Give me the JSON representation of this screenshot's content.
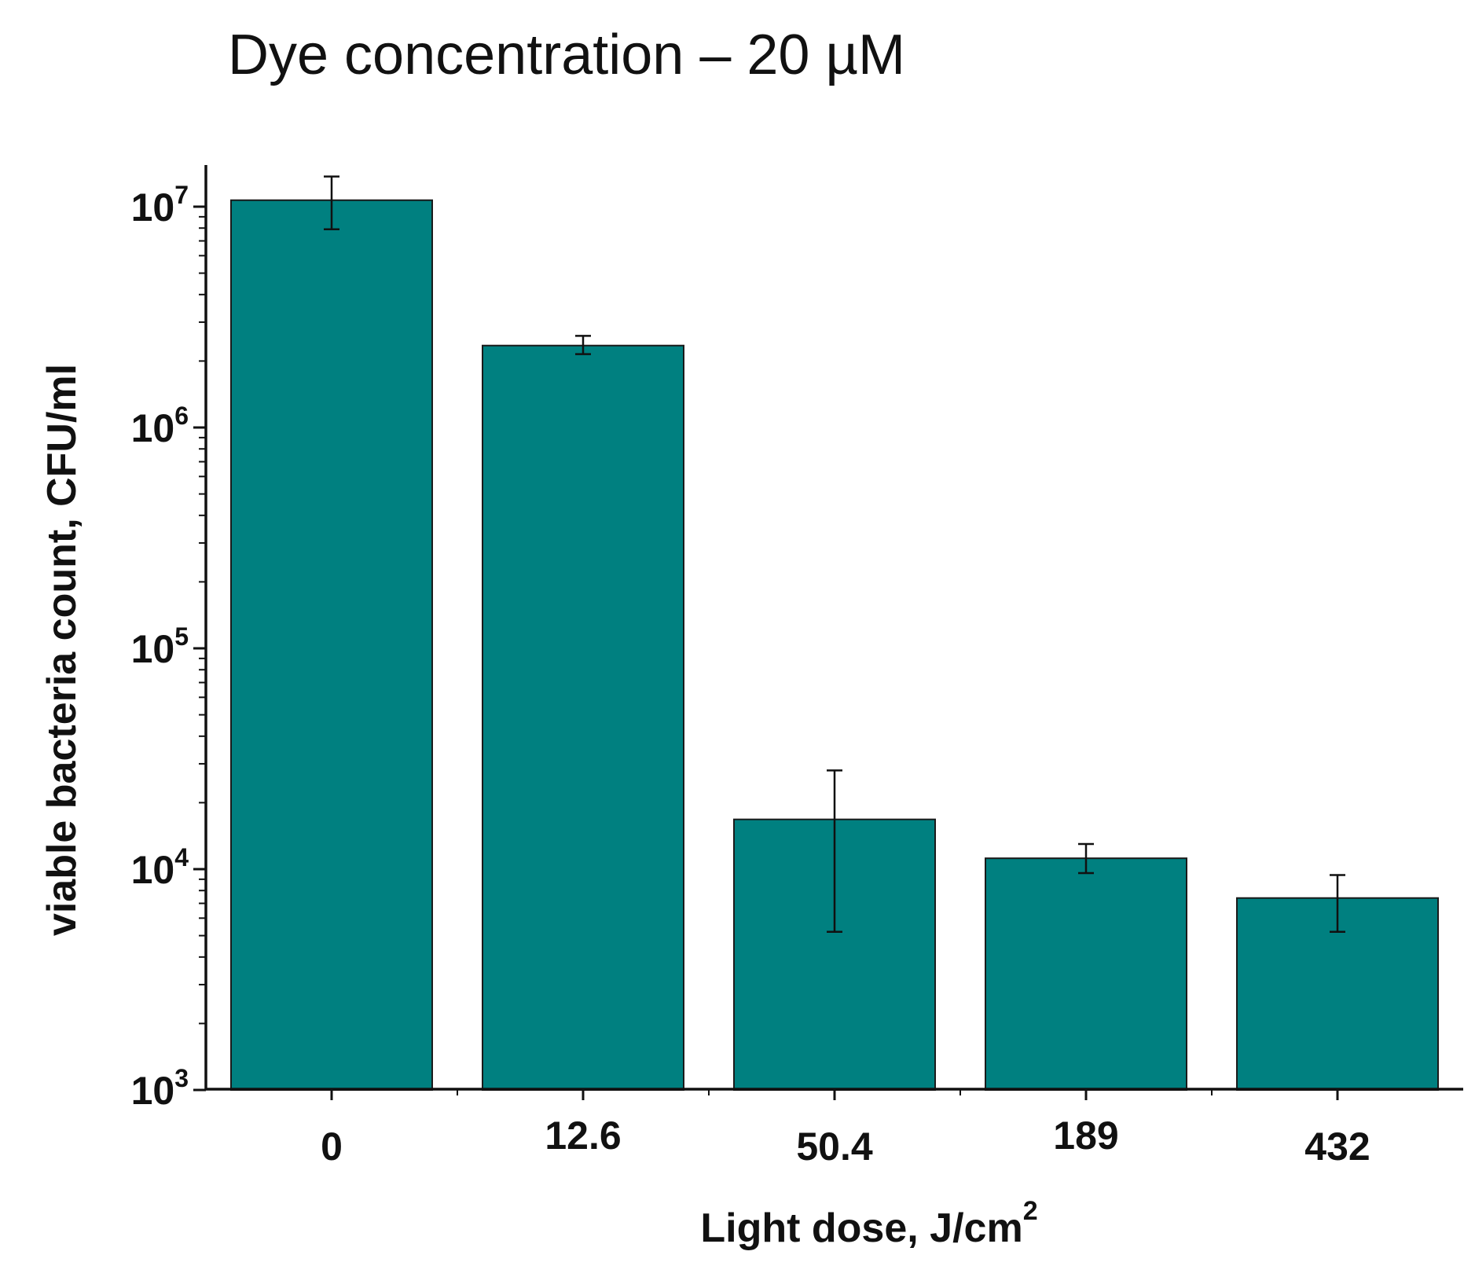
{
  "chart_data": {
    "type": "bar",
    "title": "Dye concentration – 20 µM",
    "xlabel": "Light dose, J/cm",
    "xlabel_superscript": "2",
    "ylabel": "viable bacteria count, CFU/ml",
    "yscale": "log",
    "ylim": [
      1000,
      15000000
    ],
    "yticks": [
      {
        "base": "10",
        "exp": "3",
        "value": 1000
      },
      {
        "base": "10",
        "exp": "4",
        "value": 10000
      },
      {
        "base": "10",
        "exp": "5",
        "value": 100000
      },
      {
        "base": "10",
        "exp": "6",
        "value": 1000000
      },
      {
        "base": "10",
        "exp": "7",
        "value": 10000000
      }
    ],
    "categories": [
      "0",
      "12.6",
      "50.4",
      "189",
      "432"
    ],
    "values": [
      10700000,
      2350000,
      16800,
      11200,
      7400
    ],
    "error_low": [
      7900000,
      2150000,
      5200,
      9600,
      5200
    ],
    "error_high": [
      13700000,
      2600000,
      28000,
      13000,
      9400
    ],
    "bar_color": "#008080",
    "grid": false,
    "legend": "none"
  }
}
